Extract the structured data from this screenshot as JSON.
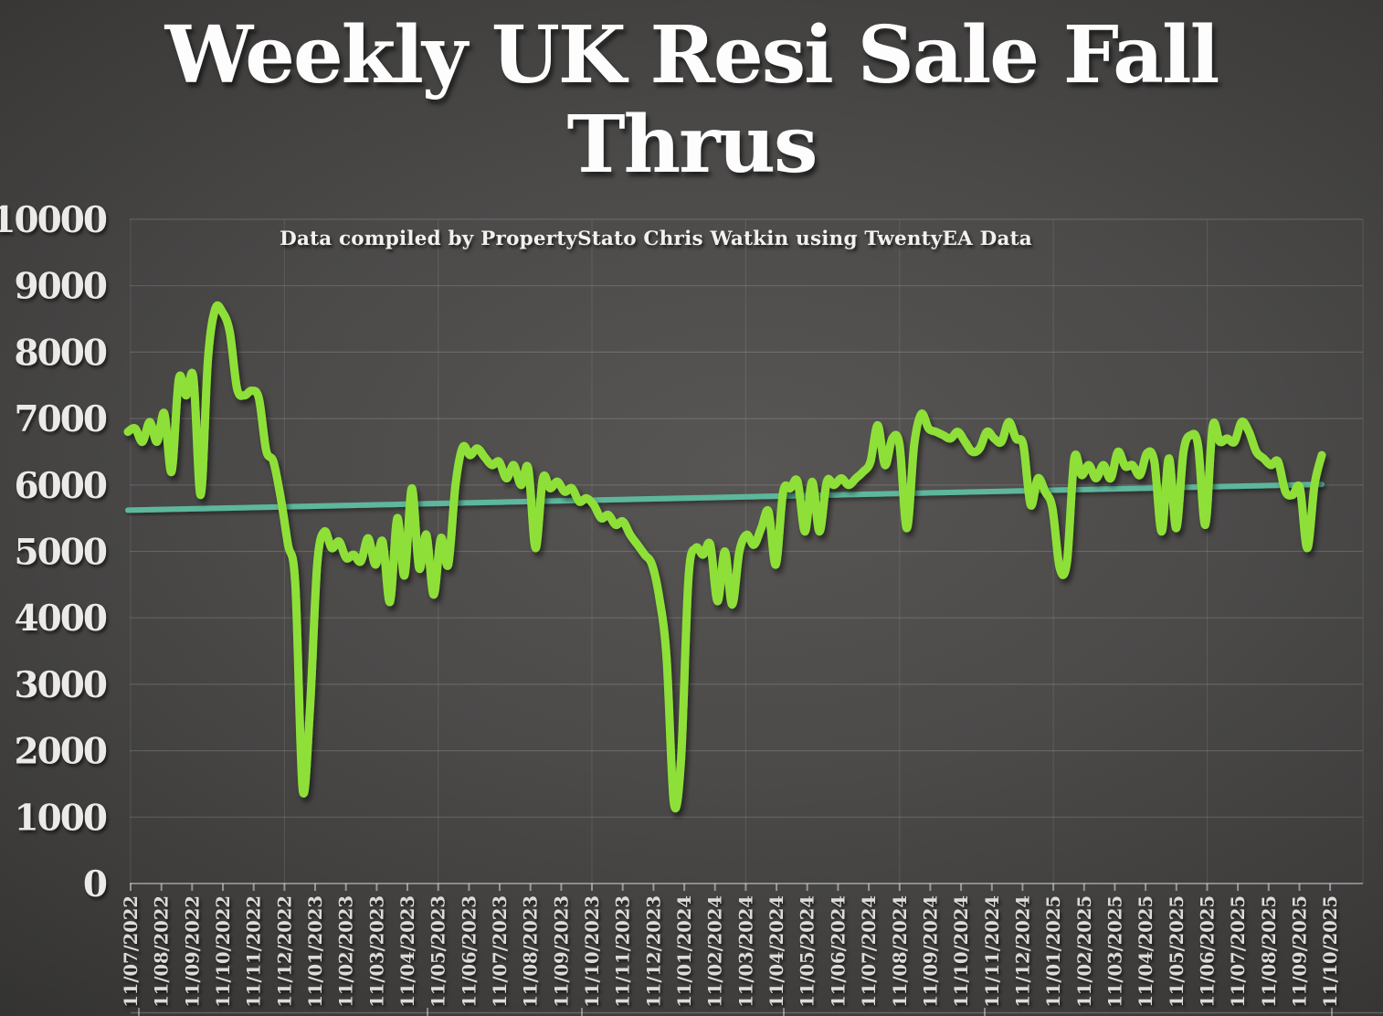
{
  "slide": {
    "title_lines": [
      "Weekly UK Resi Sale Fall",
      "Thrus"
    ],
    "subtitle": "Data compiled by PropertyStato Chris Watkin using TwentyEA Data"
  },
  "colors": {
    "series_green": "#8ee039",
    "trend_teal": "#5db79d",
    "axis_label_gray": "#e8e7e5"
  },
  "chart_data": {
    "type": "line",
    "title": "Weekly UK Resi Sale Fall Thrus",
    "subtitle": "Data compiled by PropertyStato Chris Watkin using TwentyEA Data",
    "xlabel": "",
    "ylabel": "",
    "ylim": [
      0,
      10000
    ],
    "y_ticks": [
      0,
      1000,
      2000,
      3000,
      4000,
      5000,
      6000,
      7000,
      8000,
      9000,
      10000
    ],
    "grid": {
      "horizontal": true,
      "vertical_every_n_labels": 5
    },
    "legend": {
      "visible": false
    },
    "x_tick_labels": [
      "11/07/2022",
      "11/08/2022",
      "11/09/2022",
      "11/10/2022",
      "11/11/2022",
      "11/12/2022",
      "11/01/2023",
      "11/02/2023",
      "11/03/2023",
      "11/04/2023",
      "11/05/2023",
      "11/06/2023",
      "11/07/2023",
      "11/08/2023",
      "11/09/2023",
      "11/10/2023",
      "11/11/2023",
      "11/12/2023",
      "11/01/2024",
      "11/02/2024",
      "11/03/2024",
      "11/04/2024",
      "11/05/2024",
      "11/06/2024",
      "11/07/2024",
      "11/08/2024",
      "11/09/2024",
      "11/10/2024",
      "11/11/2024",
      "11/12/2024",
      "11/01/2025",
      "11/02/2025",
      "11/03/2025",
      "11/04/2025",
      "11/05/2025",
      "11/06/2025",
      "11/07/2025",
      "11/08/2025",
      "11/09/2025",
      "11/10/2025"
    ],
    "series": [
      {
        "name": "Weekly UK residential sale fall throughs",
        "type": "line",
        "color": "#8ee039",
        "cadence": "weekly",
        "first_point_label": "11/07/2022",
        "last_point_label": "11/09/2025",
        "values": [
          6800,
          6850,
          6650,
          6950,
          6650,
          7080,
          6200,
          7600,
          7350,
          7620,
          5850,
          7900,
          8650,
          8600,
          8300,
          7450,
          7350,
          7420,
          7300,
          6520,
          6350,
          5800,
          5100,
          4500,
          1420,
          2600,
          4800,
          5300,
          5050,
          5150,
          4900,
          4950,
          4850,
          5200,
          4800,
          5150,
          4240,
          5500,
          4640,
          5950,
          4750,
          5250,
          4350,
          5200,
          4800,
          6000,
          6570,
          6450,
          6550,
          6420,
          6300,
          6350,
          6100,
          6300,
          6000,
          6250,
          5050,
          6100,
          5950,
          6050,
          5900,
          5950,
          5750,
          5800,
          5700,
          5500,
          5550,
          5400,
          5450,
          5250,
          5100,
          4950,
          4800,
          4300,
          3400,
          1210,
          1900,
          4600,
          5050,
          4950,
          5100,
          4250,
          5000,
          4200,
          5000,
          5250,
          5100,
          5350,
          5600,
          4800,
          5900,
          5950,
          6050,
          5300,
          6050,
          5300,
          6050,
          6000,
          6100,
          6000,
          6100,
          6200,
          6350,
          6900,
          6300,
          6700,
          6600,
          5350,
          6600,
          7070,
          6850,
          6800,
          6750,
          6700,
          6800,
          6650,
          6500,
          6550,
          6800,
          6700,
          6650,
          6950,
          6700,
          6600,
          5700,
          6100,
          5900,
          5650,
          4750,
          4850,
          6400,
          6150,
          6300,
          6100,
          6300,
          6100,
          6500,
          6280,
          6300,
          6150,
          6480,
          6350,
          5300,
          6400,
          5350,
          6500,
          6750,
          6600,
          5400,
          6880,
          6650,
          6700,
          6650,
          6950,
          6800,
          6500,
          6400,
          6300,
          6350,
          5900,
          5850,
          5950,
          5050,
          6000,
          6450
        ]
      },
      {
        "name": "Linear trend",
        "type": "trendline",
        "color": "#5db79d",
        "start_value": 5620,
        "end_value": 6010
      }
    ]
  }
}
